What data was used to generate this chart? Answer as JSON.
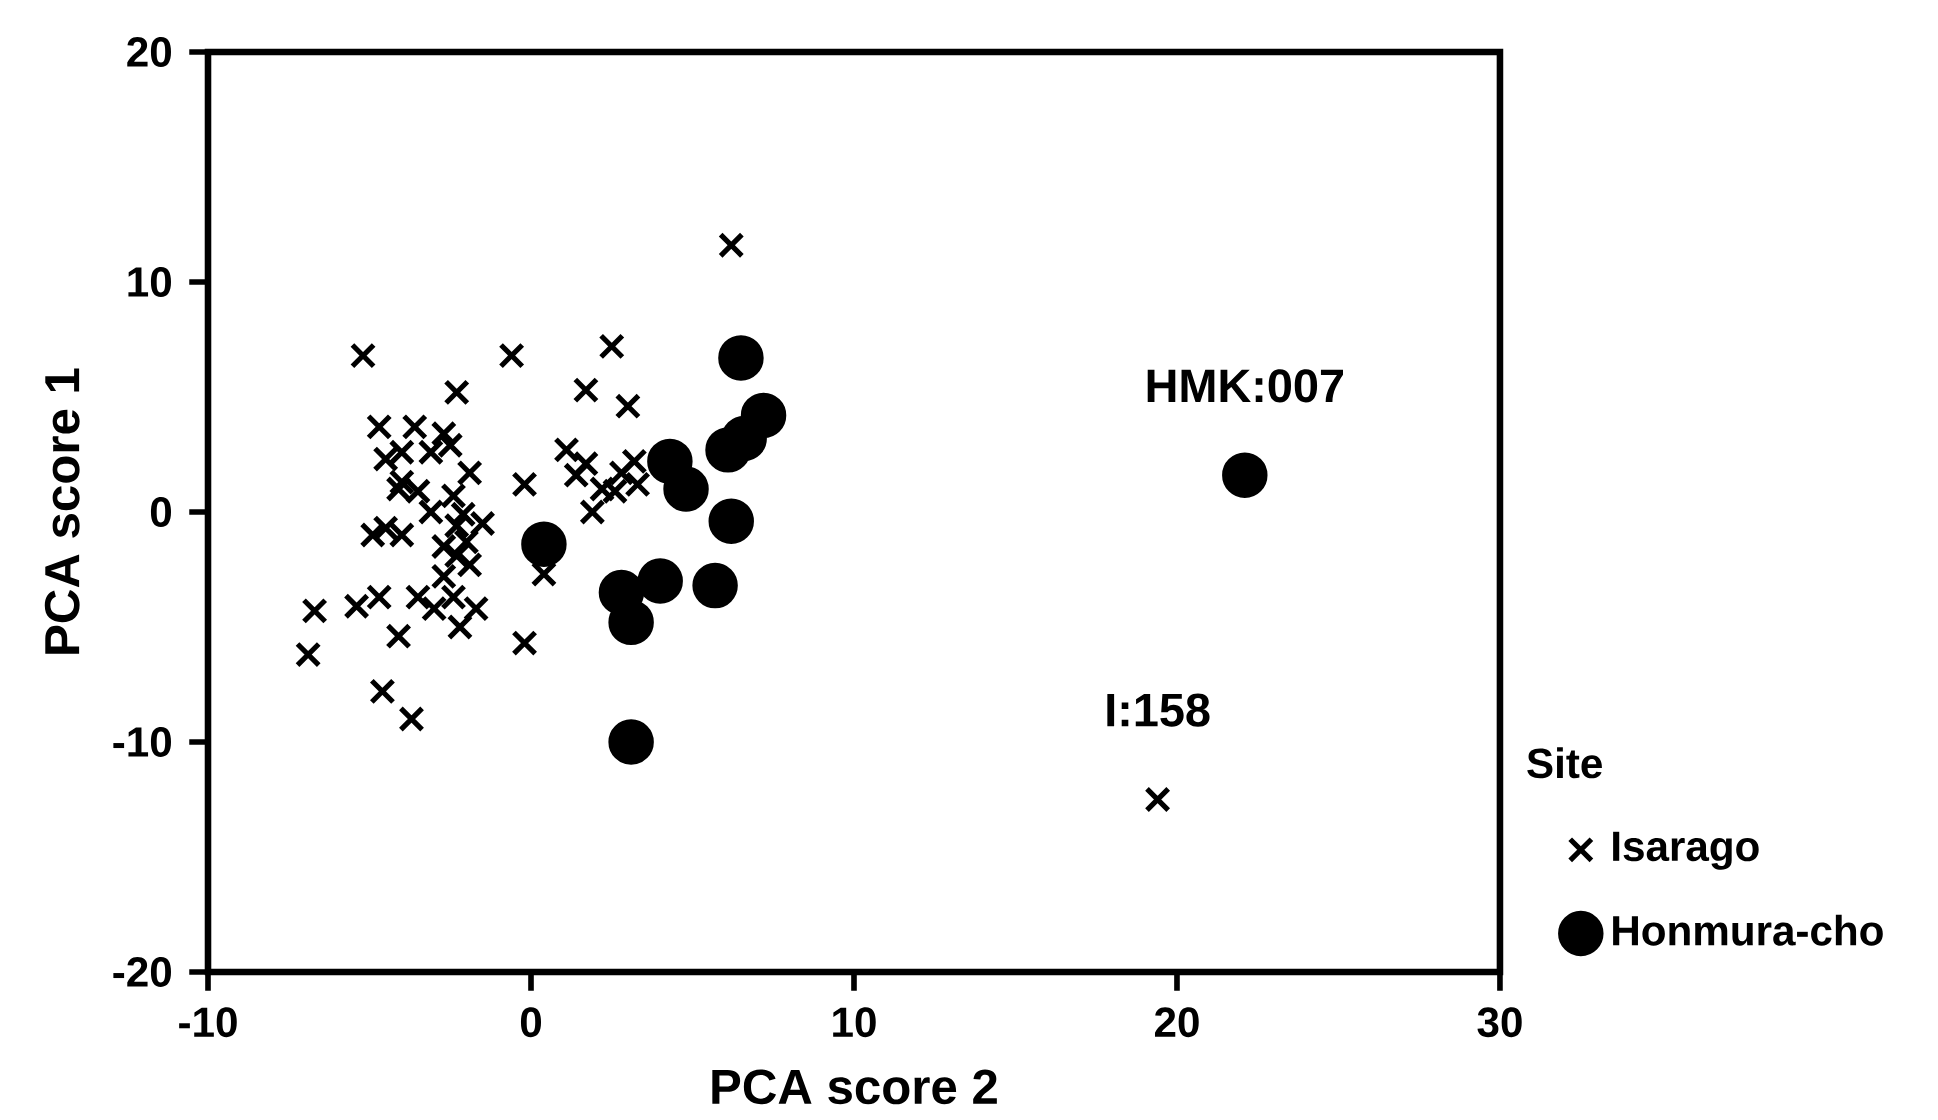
{
  "chart_data": {
    "type": "scatter",
    "xlabel": "PCA score 2",
    "ylabel": "PCA score 1",
    "legend_title": "Site",
    "legend": "bottom right",
    "grid": false,
    "xlim": [
      -10,
      30
    ],
    "ylim": [
      -20,
      20
    ],
    "xticks": [
      -10,
      0,
      10,
      20,
      30
    ],
    "yticks": [
      -20,
      -10,
      0,
      10,
      20
    ],
    "annotations": [
      {
        "text": "HMK:007",
        "x": 22.1,
        "y": 1.6
      },
      {
        "text": "I:158",
        "x": 19.4,
        "y": -12.5
      }
    ],
    "series": [
      {
        "name": "Isarago",
        "color": "#000000",
        "marker": "cross",
        "x": [
          -5.2,
          -0.6,
          2.5,
          6.2,
          -2.3,
          1.7,
          3.0,
          -4.7,
          -3.6,
          -2.7,
          -4.5,
          -4.0,
          -3.1,
          -2.5,
          -1.9,
          -4.0,
          -3.5,
          -4.1,
          -2.4,
          -2.1,
          -1.5,
          -2.3,
          -3.1,
          -2.0,
          -2.7,
          -4.9,
          -4.5,
          -4.0,
          -2.3,
          -1.9,
          -2.7,
          -2.4,
          -1.7,
          -2.2,
          -3.5,
          -3.0,
          -4.7,
          -5.4,
          -6.7,
          -6.9,
          -4.1,
          -4.6,
          -3.7,
          -0.2,
          -0.2,
          0.4,
          1.1,
          1.4,
          1.7,
          1.9,
          2.2,
          2.6,
          2.8,
          3.2,
          3.3,
          19.4
        ],
        "values": [
          6.8,
          6.8,
          7.2,
          11.6,
          5.2,
          5.3,
          4.6,
          3.7,
          3.7,
          3.4,
          2.3,
          2.6,
          2.6,
          2.9,
          1.7,
          1.3,
          0.9,
          1.0,
          0.7,
          -0.1,
          -0.5,
          -0.6,
          0,
          -1.3,
          -1.5,
          -1.0,
          -0.7,
          -1.0,
          -1.9,
          -2.3,
          -2.8,
          -3.7,
          -4.2,
          -5.0,
          -3.7,
          -4.2,
          -3.7,
          -4.1,
          -4.3,
          -6.2,
          -5.4,
          -7.8,
          -9.0,
          1.2,
          -5.7,
          -2.7,
          2.7,
          1.6,
          2.1,
          0,
          1.0,
          0.9,
          1.7,
          2.2,
          1.2,
          -12.5
        ]
      },
      {
        "name": "Honmura-cho",
        "color": "#000000",
        "marker": "circle",
        "x": [
          0.4,
          2.8,
          3.1,
          3.1,
          4.0,
          4.3,
          4.8,
          5.7,
          6.1,
          6.2,
          6.6,
          6.5,
          7.2,
          22.1
        ],
        "values": [
          -1.4,
          -3.5,
          -4.8,
          -10.0,
          -3.0,
          2.2,
          1.0,
          -3.2,
          2.7,
          -0.4,
          3.2,
          6.7,
          4.2,
          1.6
        ]
      }
    ]
  }
}
